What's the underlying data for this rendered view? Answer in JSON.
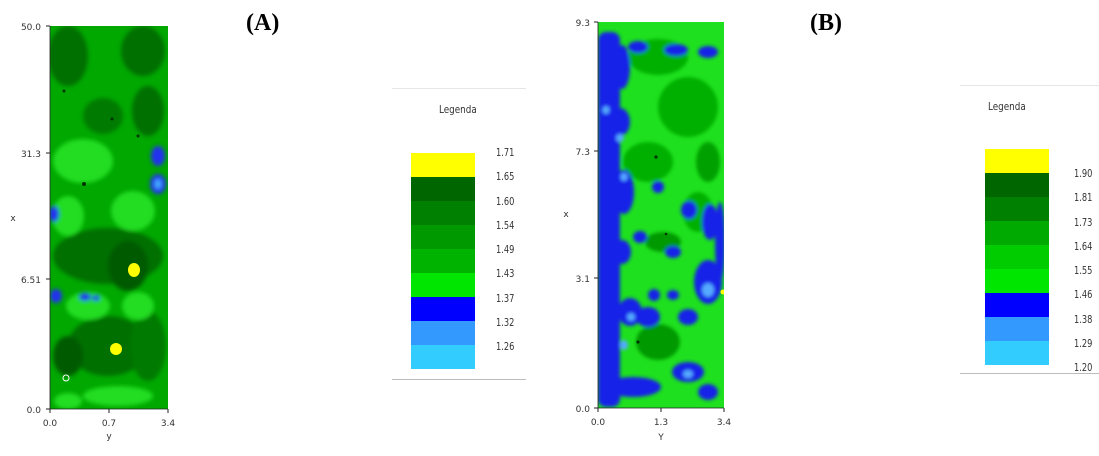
{
  "panels": {
    "a": {
      "label": "(A)"
    },
    "b": {
      "label": "(B)"
    }
  },
  "chart_data": [
    {
      "type": "heatmap",
      "panel": "(A)",
      "xlabel": "y",
      "ylabel": "x",
      "x_ticks": [
        "0.0",
        "0.7",
        "3.4"
      ],
      "y_ticks": [
        "0.0",
        "6.51",
        "31.3",
        "50.0"
      ],
      "legend": {
        "title": "Legenda",
        "entries": [
          {
            "label": "1.71",
            "color": "#ffff00"
          },
          {
            "label": "1.65",
            "color": "#006600"
          },
          {
            "label": "1.60",
            "color": "#008000"
          },
          {
            "label": "1.54",
            "color": "#009900"
          },
          {
            "label": "1.49",
            "color": "#00b300"
          },
          {
            "label": "1.43",
            "color": "#00e600"
          },
          {
            "label": "1.37",
            "color": "#0000ff"
          },
          {
            "label": "1.32",
            "color": "#3399ff"
          },
          {
            "label": "1.26",
            "color": "#33ccff"
          }
        ]
      }
    },
    {
      "type": "heatmap",
      "panel": "(B)",
      "xlabel": "Y",
      "ylabel": "x",
      "x_ticks": [
        "0.0",
        "1.3",
        "3.4"
      ],
      "y_ticks": [
        "0.0",
        "3.1",
        "7.3",
        "9.3"
      ],
      "legend": {
        "title": "Legenda",
        "entries": [
          {
            "label": "1.90",
            "color": "#ffff00"
          },
          {
            "label": "1.81",
            "color": "#006600"
          },
          {
            "label": "1.73",
            "color": "#008000"
          },
          {
            "label": "1.64",
            "color": "#00aa00"
          },
          {
            "label": "1.55",
            "color": "#00cc00"
          },
          {
            "label": "1.46",
            "color": "#00e600"
          },
          {
            "label": "1.38",
            "color": "#0000ff"
          },
          {
            "label": "1.29",
            "color": "#3399ff"
          },
          {
            "label": "1.20",
            "color": "#33ccff"
          }
        ]
      }
    }
  ]
}
